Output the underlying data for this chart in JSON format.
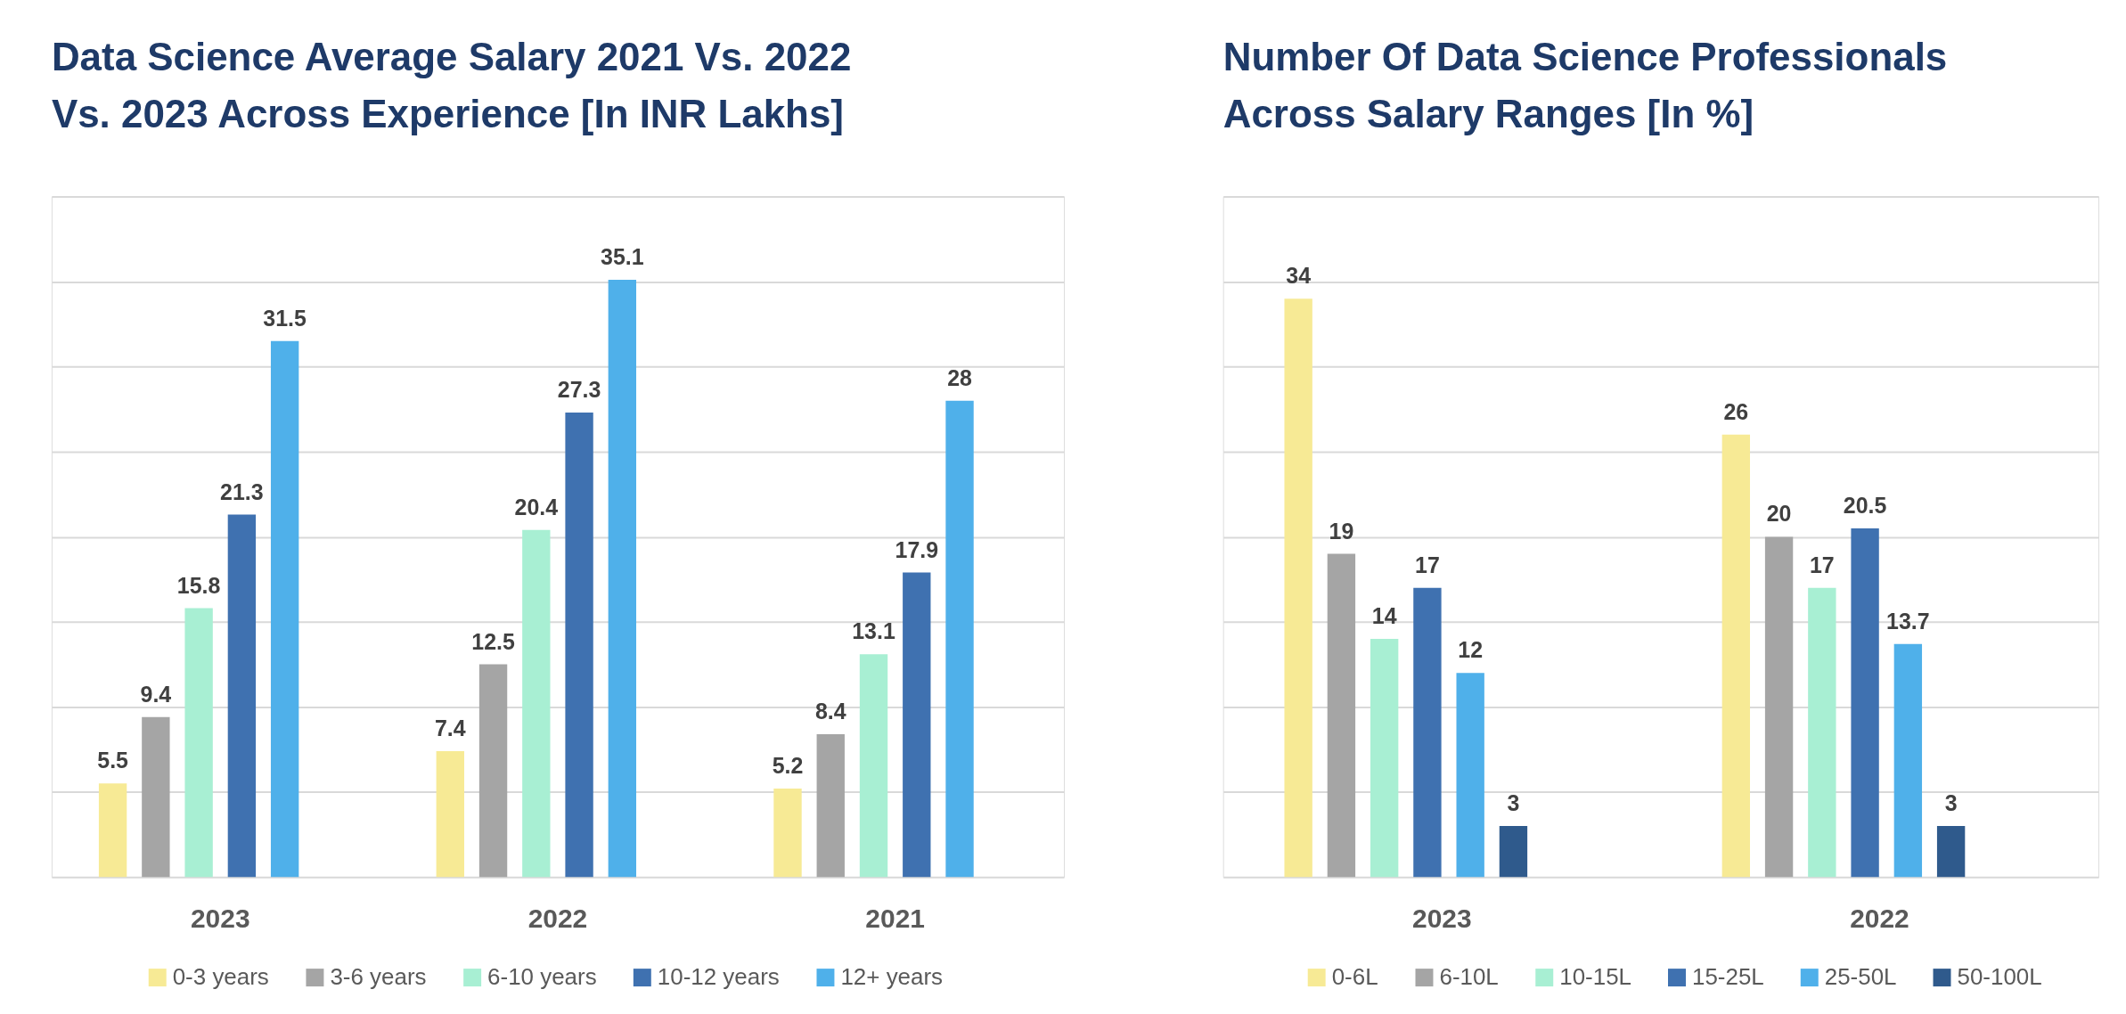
{
  "chart_data": [
    {
      "type": "bar",
      "title": "Data Science Average Salary 2021 Vs. 2022 Vs. 2023 Across Experience [In INR Lakhs]",
      "categories": [
        "2023",
        "2022",
        "2021"
      ],
      "series": [
        {
          "name": "0-3 years",
          "color": "#f7ea95",
          "values": [
            5.5,
            7.4,
            5.2
          ]
        },
        {
          "name": "3-6 years",
          "color": "#a5a5a5",
          "values": [
            9.4,
            12.5,
            8.4
          ]
        },
        {
          "name": "6-10 years",
          "color": "#a8efd3",
          "values": [
            15.8,
            20.4,
            13.1
          ]
        },
        {
          "name": "10-12 years",
          "color": "#3f71b0",
          "values": [
            21.3,
            27.3,
            17.9
          ]
        },
        {
          "name": "12+ years",
          "color": "#4fb0ea",
          "values": [
            31.5,
            35.1,
            28
          ]
        }
      ],
      "ylim": [
        0,
        40
      ],
      "yticks": [
        {
          "value": 0,
          "label": null
        },
        {
          "value": 5,
          "label": null
        },
        {
          "value": 10,
          "label": null
        },
        {
          "value": 15,
          "label": null
        },
        {
          "value": 20,
          "label": null
        },
        {
          "value": 25,
          "label": null
        },
        {
          "value": 30,
          "label": null
        },
        {
          "value": 35,
          "label": null
        },
        {
          "value": 40,
          "label": null
        }
      ],
      "grid": "y",
      "legend": "bottom",
      "tick_labels": "x",
      "data_labels": true
    },
    {
      "type": "bar",
      "title": "Number Of Data Science Professionals Across Salary Ranges [In %]",
      "categories": [
        "2023",
        "2022"
      ],
      "series": [
        {
          "name": "0-6L",
          "color": "#f7ea95",
          "values": [
            34,
            26
          ]
        },
        {
          "name": "6-10L",
          "color": "#a5a5a5",
          "values": [
            19,
            20
          ]
        },
        {
          "name": "10-15L",
          "color": "#a8efd3",
          "values": [
            14,
            17
          ]
        },
        {
          "name": "15-25L",
          "color": "#3f71b0",
          "values": [
            17,
            20.5
          ]
        },
        {
          "name": "25-50L",
          "color": "#4fb0ea",
          "values": [
            12,
            13.7
          ]
        },
        {
          "name": "50-100L",
          "color": "#2f5a8c",
          "values": [
            3,
            3
          ]
        }
      ],
      "ylim": [
        0,
        40
      ],
      "yticks": [
        {
          "value": 0,
          "label": null
        },
        {
          "value": 5,
          "label": null
        },
        {
          "value": 10,
          "label": null
        },
        {
          "value": 15,
          "label": null
        },
        {
          "value": 20,
          "label": null
        },
        {
          "value": 25,
          "label": null
        },
        {
          "value": 30,
          "label": null
        },
        {
          "value": 35,
          "label": null
        },
        {
          "value": 40,
          "label": null
        }
      ],
      "grid": "y",
      "legend": "bottom",
      "tick_labels": "x",
      "data_labels": true
    }
  ]
}
